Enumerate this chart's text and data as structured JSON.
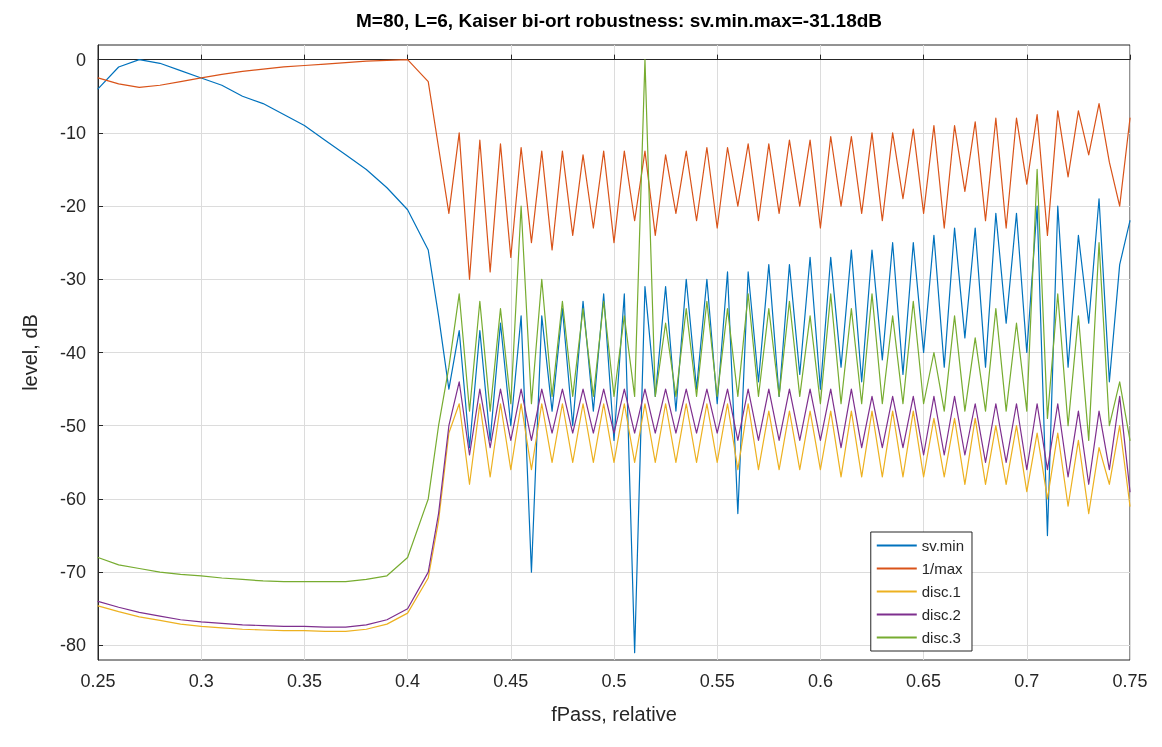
{
  "chart_data": {
    "type": "line",
    "title": "M=80, L=6, Kaiser bi-ort robustness: sv.min.max=-31.18dB",
    "xlabel": "fPass, relative",
    "ylabel": "level, dB",
    "x": [
      0.25,
      0.26,
      0.27,
      0.28,
      0.29,
      0.3,
      0.31,
      0.32,
      0.33,
      0.34,
      0.35,
      0.36,
      0.37,
      0.38,
      0.39,
      0.4,
      0.41,
      0.415,
      0.42,
      0.425,
      0.43,
      0.435,
      0.44,
      0.445,
      0.45,
      0.455,
      0.46,
      0.465,
      0.47,
      0.475,
      0.48,
      0.485,
      0.49,
      0.495,
      0.5,
      0.505,
      0.51,
      0.515,
      0.52,
      0.525,
      0.53,
      0.535,
      0.54,
      0.545,
      0.55,
      0.555,
      0.56,
      0.565,
      0.57,
      0.575,
      0.58,
      0.585,
      0.59,
      0.595,
      0.6,
      0.605,
      0.61,
      0.615,
      0.62,
      0.625,
      0.63,
      0.635,
      0.64,
      0.645,
      0.65,
      0.655,
      0.66,
      0.665,
      0.67,
      0.675,
      0.68,
      0.685,
      0.69,
      0.695,
      0.7,
      0.705,
      0.71,
      0.715,
      0.72,
      0.725,
      0.73,
      0.735,
      0.74,
      0.745,
      0.75
    ],
    "series": [
      {
        "name": "sv.min",
        "color": "#0072bd",
        "values": [
          -4,
          -1,
          0,
          -0.5,
          -1.5,
          -2.5,
          -3.5,
          -5,
          -6,
          -7.5,
          -9,
          -11,
          -13,
          -15,
          -17.5,
          -20.5,
          -26,
          -35,
          -45,
          -37,
          -53,
          -37,
          -52,
          -36,
          -50,
          -35,
          -70,
          -35,
          -48,
          -34,
          -50,
          -33,
          -48,
          -32,
          -52,
          -32,
          -81,
          -31,
          -46,
          -31,
          -48,
          -30,
          -45,
          -30,
          -47,
          -29,
          -62,
          -29,
          -44,
          -28,
          -46,
          -28,
          -43,
          -27,
          -45,
          -27,
          -42,
          -26,
          -44,
          -26,
          -41,
          -25,
          -43,
          -25,
          -40,
          -24,
          -42,
          -23,
          -38,
          -23,
          -42,
          -21,
          -36,
          -21,
          -40,
          -20,
          -65,
          -20,
          -42,
          -24,
          -36,
          -19,
          -44,
          -28,
          -22
        ]
      },
      {
        "name": "1/max",
        "color": "#d95319",
        "values": [
          -2.5,
          -3.3,
          -3.8,
          -3.5,
          -3,
          -2.5,
          -2,
          -1.6,
          -1.3,
          -1,
          -0.8,
          -0.6,
          -0.4,
          -0.2,
          -0.1,
          0,
          -3,
          -12,
          -21,
          -10,
          -30,
          -11,
          -29,
          -11.5,
          -27,
          -12,
          -25,
          -12.5,
          -26,
          -12.5,
          -24,
          -13,
          -23,
          -12.5,
          -25,
          -12.5,
          -22,
          -12.5,
          -24,
          -13,
          -21,
          -12.5,
          -22,
          -12,
          -23,
          -12,
          -20,
          -11.5,
          -22,
          -11.5,
          -21,
          -11,
          -20,
          -11,
          -23,
          -10.5,
          -20,
          -10.5,
          -21,
          -10,
          -22,
          -10,
          -19,
          -9.5,
          -21,
          -9,
          -23,
          -9,
          -18,
          -8.5,
          -22,
          -8,
          -23,
          -8,
          -17,
          -7.5,
          -24,
          -7,
          -16,
          -7,
          -13,
          -6,
          -14,
          -20,
          -8
        ]
      },
      {
        "name": "disc.1",
        "color": "#edb120",
        "values": [
          -74.6,
          -75.4,
          -76.1,
          -76.6,
          -77.1,
          -77.4,
          -77.6,
          -77.8,
          -77.9,
          -78,
          -78,
          -78.1,
          -78.1,
          -77.8,
          -77.1,
          -75.6,
          -70.8,
          -63,
          -51,
          -47,
          -58,
          -47,
          -57,
          -47,
          -56,
          -47,
          -56,
          -47,
          -55,
          -47,
          -55,
          -47,
          -55,
          -47,
          -55,
          -47,
          -55,
          -47,
          -55,
          -47,
          -55,
          -47,
          -55,
          -47,
          -55,
          -47,
          -56,
          -47,
          -56,
          -48,
          -56,
          -48,
          -56,
          -48,
          -56,
          -48,
          -57,
          -48,
          -57,
          -48,
          -57,
          -48,
          -57,
          -48,
          -57,
          -49,
          -57,
          -49,
          -58,
          -49,
          -58,
          -50,
          -58,
          -50,
          -59,
          -51,
          -60,
          -51,
          -61,
          -52,
          -62,
          -53,
          -58,
          -50,
          -61
        ]
      },
      {
        "name": "disc.2",
        "color": "#7e2f8e",
        "values": [
          -74,
          -74.8,
          -75.5,
          -76,
          -76.5,
          -76.8,
          -77,
          -77.2,
          -77.3,
          -77.4,
          -77.4,
          -77.5,
          -77.5,
          -77.2,
          -76.5,
          -75,
          -70,
          -62,
          -50,
          -44,
          -54,
          -45,
          -53,
          -45,
          -52,
          -45,
          -52,
          -45,
          -51,
          -45,
          -51,
          -45,
          -51,
          -45,
          -51,
          -45,
          -51,
          -45,
          -51,
          -45,
          -51,
          -45,
          -51,
          -45,
          -51,
          -45,
          -52,
          -45,
          -52,
          -45,
          -52,
          -45,
          -52,
          -45,
          -52,
          -45,
          -53,
          -45,
          -53,
          -46,
          -53,
          -46,
          -53,
          -46,
          -54,
          -46,
          -54,
          -46,
          -54,
          -47,
          -55,
          -47,
          -55,
          -47,
          -56,
          -47,
          -56,
          -47,
          -57,
          -48,
          -58,
          -48,
          -56,
          -46,
          -59
        ]
      },
      {
        "name": "disc.3",
        "color": "#77ac30",
        "values": [
          -68,
          -69,
          -69.5,
          -70,
          -70.3,
          -70.5,
          -70.8,
          -71,
          -71.2,
          -71.3,
          -71.3,
          -71.3,
          -71.3,
          -71,
          -70.5,
          -68,
          -60,
          -50,
          -42,
          -32,
          -48,
          -33,
          -48,
          -34,
          -47,
          -20,
          -47,
          -30,
          -46,
          -33,
          -46,
          -34,
          -46,
          -33,
          -46,
          -35,
          -46,
          0,
          -46,
          -36,
          -46,
          -34,
          -46,
          -33,
          -46,
          -34,
          -46,
          -32,
          -46,
          -34,
          -46,
          -33,
          -46,
          -35,
          -47,
          -32,
          -47,
          -34,
          -47,
          -32,
          -47,
          -35,
          -47,
          -33,
          -47,
          -40,
          -48,
          -35,
          -48,
          -38,
          -48,
          -34,
          -48,
          -36,
          -48,
          -15,
          -49,
          -32,
          -50,
          -35,
          -52,
          -25,
          -50,
          -44,
          -52
        ]
      }
    ],
    "xlim": [
      0.25,
      0.75
    ],
    "xticks": [
      0.25,
      0.3,
      0.35,
      0.4,
      0.45,
      0.5,
      0.55,
      0.6,
      0.65,
      0.7,
      0.75
    ],
    "ylim": [
      -82,
      2
    ],
    "yticks": [
      -80,
      -70,
      -60,
      -50,
      -40,
      -30,
      -20,
      -10,
      0
    ],
    "grid": true,
    "legend": "bottom right",
    "marker": "none",
    "line_style": "solid"
  }
}
